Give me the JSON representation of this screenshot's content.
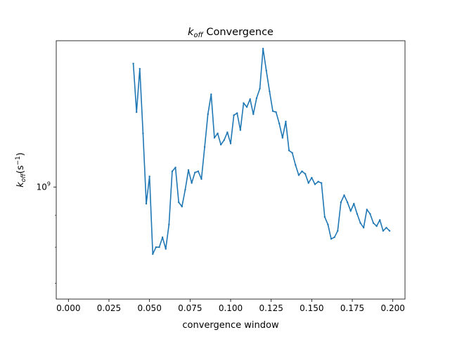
{
  "chart_data": {
    "type": "line",
    "title_main": "k",
    "title_sub": "off",
    "title_rest": " Convergence",
    "xlabel": "convergence window",
    "ylabel_main": "k",
    "ylabel_sub": "off",
    "ylabel_paren": "(s",
    "ylabel_sup": "−1",
    "ylabel_close": ")",
    "xlim": [
      -0.0075,
      0.2075
    ],
    "ylim": [
      660000000.0,
      1720000000.0
    ],
    "y_scale": "log",
    "grid": false,
    "xticks": [
      {
        "value": 0.0,
        "label": "0.000"
      },
      {
        "value": 0.025,
        "label": "0.025"
      },
      {
        "value": 0.05,
        "label": "0.050"
      },
      {
        "value": 0.075,
        "label": "0.075"
      },
      {
        "value": 0.1,
        "label": "0.100"
      },
      {
        "value": 0.125,
        "label": "0.125"
      },
      {
        "value": 0.15,
        "label": "0.150"
      },
      {
        "value": 0.175,
        "label": "0.175"
      },
      {
        "value": 0.2,
        "label": "0.200"
      }
    ],
    "yticks": [
      {
        "value": 1000000000.0,
        "base": "10",
        "exp": "9"
      }
    ],
    "color": "#1f77b4",
    "series": [
      {
        "x": [
          0.04,
          0.042,
          0.044,
          0.046,
          0.048,
          0.05,
          0.052,
          0.054,
          0.056,
          0.058,
          0.06,
          0.062,
          0.064,
          0.066,
          0.068,
          0.07,
          0.072,
          0.074,
          0.076,
          0.078,
          0.08,
          0.082,
          0.084,
          0.086,
          0.088,
          0.09,
          0.092,
          0.094,
          0.096,
          0.098,
          0.1,
          0.102,
          0.104,
          0.106,
          0.108,
          0.11,
          0.112,
          0.114,
          0.116,
          0.118,
          0.12,
          0.122,
          0.124,
          0.126,
          0.128,
          0.13,
          0.132,
          0.134,
          0.136,
          0.138,
          0.14,
          0.142,
          0.144,
          0.146,
          0.148,
          0.15,
          0.152,
          0.154,
          0.156,
          0.158,
          0.16,
          0.162,
          0.164,
          0.166,
          0.168,
          0.17,
          0.172,
          0.174,
          0.176,
          0.178,
          0.18,
          0.182,
          0.184,
          0.186,
          0.188,
          0.19,
          0.192,
          0.194,
          0.196,
          0.198
        ],
        "y": [
          1580000000.0,
          1320000000.0,
          1550000000.0,
          1220000000.0,
          940000000.0,
          1040000000.0,
          780000000.0,
          800000000.0,
          800000000.0,
          830000000.0,
          795000000.0,
          870000000.0,
          1060000000.0,
          1075000000.0,
          945000000.0,
          930000000.0,
          990000000.0,
          1065000000.0,
          1015000000.0,
          1055000000.0,
          1060000000.0,
          1030000000.0,
          1160000000.0,
          1310000000.0,
          1410000000.0,
          1200000000.0,
          1220000000.0,
          1170000000.0,
          1190000000.0,
          1225000000.0,
          1175000000.0,
          1305000000.0,
          1315000000.0,
          1235000000.0,
          1365000000.0,
          1345000000.0,
          1385000000.0,
          1310000000.0,
          1390000000.0,
          1440000000.0,
          1670000000.0,
          1540000000.0,
          1425000000.0,
          1325000000.0,
          1320000000.0,
          1265000000.0,
          1200000000.0,
          1275000000.0,
          1145000000.0,
          1135000000.0,
          1085000000.0,
          1045000000.0,
          1060000000.0,
          1050000000.0,
          1015000000.0,
          1035000000.0,
          1010000000.0,
          1020000000.0,
          1015000000.0,
          895000000.0,
          870000000.0,
          825000000.0,
          830000000.0,
          850000000.0,
          945000000.0,
          970000000.0,
          945000000.0,
          915000000.0,
          940000000.0,
          905000000.0,
          875000000.0,
          860000000.0,
          920000000.0,
          905000000.0,
          875000000.0,
          865000000.0,
          885000000.0,
          850000000.0,
          860000000.0,
          850000000.0
        ]
      }
    ]
  }
}
